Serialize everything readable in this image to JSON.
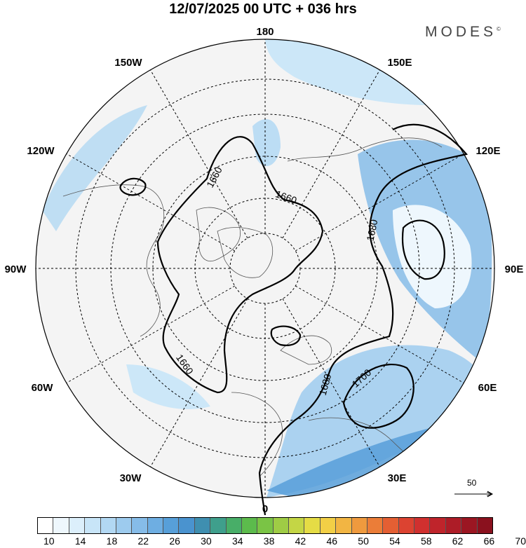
{
  "title": "12/07/2025  00 UTC  + 036 hrs",
  "brand": "MODES",
  "brand_mark": "©",
  "longitude_labels": {
    "lon_180": "180",
    "lon_150w": "150W",
    "lon_150e": "150E",
    "lon_120w": "120W",
    "lon_120e": "120E",
    "lon_90w": "90W",
    "lon_90e": "90E",
    "lon_60w": "60W",
    "lon_60e": "60E",
    "lon_30w": "30W",
    "lon_30e": "30E",
    "lon_0": "0"
  },
  "contour_labels": [
    "1660",
    "1660",
    "1660",
    "1680",
    "1680",
    "1700"
  ],
  "reference_vector": {
    "value": "50"
  },
  "colorbar": {
    "tick_labels": [
      "10",
      "14",
      "18",
      "22",
      "26",
      "30",
      "34",
      "38",
      "42",
      "46",
      "50",
      "54",
      "58",
      "62",
      "66",
      "70"
    ],
    "colors": [
      "#ffffff",
      "#eef7fd",
      "#dceffb",
      "#c8e5f8",
      "#b2d8f3",
      "#9dcbee",
      "#86bce8",
      "#6eaee2",
      "#579fd9",
      "#4a93cf",
      "#3f8fb0",
      "#3f9f8c",
      "#48ae68",
      "#5cbb4c",
      "#7ac445",
      "#9fcc45",
      "#c4d645",
      "#e5dc45",
      "#f2cf46",
      "#f2b543",
      "#ef9a3e",
      "#eb7d38",
      "#e45f33",
      "#dc4331",
      "#d0302f",
      "#bf242b",
      "#ad1c27",
      "#9b1622",
      "#8a111e"
    ]
  }
}
